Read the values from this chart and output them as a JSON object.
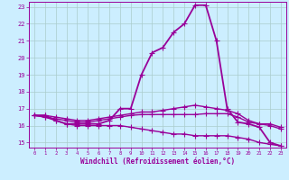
{
  "xlabel": "Windchill (Refroidissement éolien,°C)",
  "xlim": [
    -0.5,
    23.5
  ],
  "ylim": [
    14.7,
    23.3
  ],
  "yticks": [
    15,
    16,
    17,
    18,
    19,
    20,
    21,
    22,
    23
  ],
  "xticks": [
    0,
    1,
    2,
    3,
    4,
    5,
    6,
    7,
    8,
    9,
    10,
    11,
    12,
    13,
    14,
    15,
    16,
    17,
    18,
    19,
    20,
    21,
    22,
    23
  ],
  "bg_color": "#cceeff",
  "grid_color": "#aacccc",
  "line_color": "#990099",
  "lines": [
    {
      "x": [
        0,
        1,
        2,
        3,
        4,
        5,
        6,
        7,
        8,
        9,
        10,
        11,
        12,
        13,
        14,
        15,
        16,
        17,
        18,
        19,
        20,
        21,
        22,
        23
      ],
      "y": [
        16.6,
        16.6,
        16.3,
        16.1,
        16.1,
        16.1,
        16.1,
        16.3,
        17.0,
        17.0,
        19.0,
        20.3,
        20.6,
        21.5,
        22.0,
        23.1,
        23.1,
        21.0,
        17.0,
        16.2,
        16.1,
        15.9,
        15.0,
        14.8
      ],
      "lw": 1.3
    },
    {
      "x": [
        0,
        1,
        2,
        3,
        4,
        5,
        6,
        7,
        8,
        9,
        10,
        11,
        12,
        13,
        14,
        15,
        16,
        17,
        18,
        19,
        20,
        21,
        22,
        23
      ],
      "y": [
        16.6,
        16.5,
        16.4,
        16.3,
        16.2,
        16.2,
        16.3,
        16.4,
        16.5,
        16.6,
        16.65,
        16.65,
        16.65,
        16.65,
        16.65,
        16.65,
        16.7,
        16.7,
        16.7,
        16.5,
        16.2,
        16.1,
        16.0,
        15.8
      ],
      "lw": 1.0
    },
    {
      "x": [
        0,
        1,
        2,
        3,
        4,
        5,
        6,
        7,
        8,
        9,
        10,
        11,
        12,
        13,
        14,
        15,
        16,
        17,
        18,
        19,
        20,
        21,
        22,
        23
      ],
      "y": [
        16.6,
        16.5,
        16.3,
        16.1,
        16.0,
        16.0,
        16.0,
        16.0,
        16.0,
        15.9,
        15.8,
        15.7,
        15.6,
        15.5,
        15.5,
        15.4,
        15.4,
        15.4,
        15.4,
        15.3,
        15.2,
        15.0,
        14.9,
        14.8
      ],
      "lw": 1.0
    },
    {
      "x": [
        0,
        1,
        2,
        3,
        4,
        5,
        6,
        7,
        8,
        9,
        10,
        11,
        12,
        13,
        14,
        15,
        16,
        17,
        18,
        19,
        20,
        21,
        22,
        23
      ],
      "y": [
        16.6,
        16.6,
        16.5,
        16.4,
        16.3,
        16.3,
        16.4,
        16.5,
        16.6,
        16.7,
        16.8,
        16.8,
        16.9,
        17.0,
        17.1,
        17.2,
        17.1,
        17.0,
        16.9,
        16.7,
        16.3,
        16.1,
        16.1,
        15.9
      ],
      "lw": 1.0
    }
  ]
}
